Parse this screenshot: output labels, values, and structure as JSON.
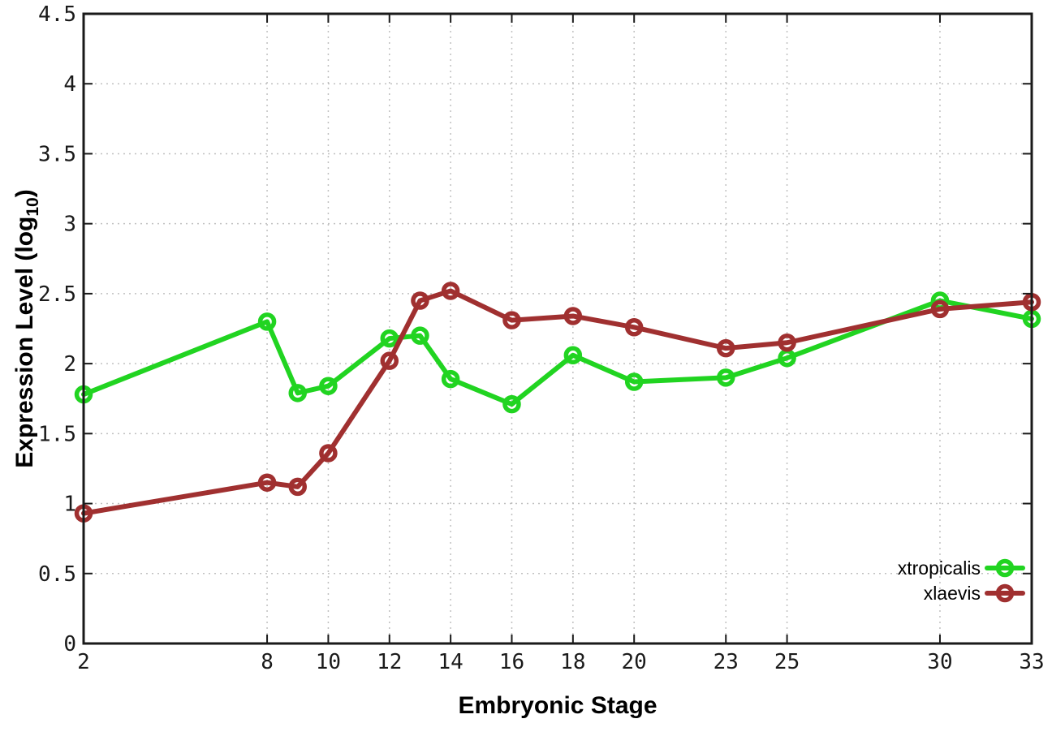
{
  "chart_data": {
    "type": "line",
    "title": "",
    "xlabel": "Embryonic Stage",
    "ylabel": "Expression Level (log10)",
    "ylabel_parts": {
      "main": "Expression Level (log",
      "sub": "10",
      "end": ")"
    },
    "xlim": [
      2,
      33
    ],
    "ylim": [
      0,
      4.5
    ],
    "x_ticks": [
      2,
      8,
      10,
      12,
      14,
      16,
      18,
      20,
      23,
      25,
      30,
      33
    ],
    "y_ticks": [
      0,
      0.5,
      1,
      1.5,
      2,
      2.5,
      3,
      3.5,
      4,
      4.5
    ],
    "grid": true,
    "legend_position": "bottom-right",
    "x": [
      2,
      8,
      9,
      10,
      12,
      13,
      14,
      16,
      18,
      20,
      23,
      25,
      30,
      33
    ],
    "series": [
      {
        "name": "xtropicalis",
        "color": "#21d421",
        "marker": "open-circle",
        "values": [
          1.78,
          2.3,
          1.79,
          1.84,
          2.18,
          2.2,
          1.89,
          1.71,
          2.06,
          1.87,
          1.9,
          2.04,
          2.45,
          2.32
        ]
      },
      {
        "name": "xlaevis",
        "color": "#a03030",
        "marker": "open-circle",
        "values": [
          0.93,
          1.15,
          1.12,
          1.36,
          2.02,
          2.45,
          2.52,
          2.31,
          2.34,
          2.26,
          2.11,
          2.15,
          2.39,
          2.44
        ]
      }
    ],
    "colors": {
      "grid": "#c0c0c0",
      "axis": "#1a1a1a",
      "background": "#ffffff"
    }
  }
}
